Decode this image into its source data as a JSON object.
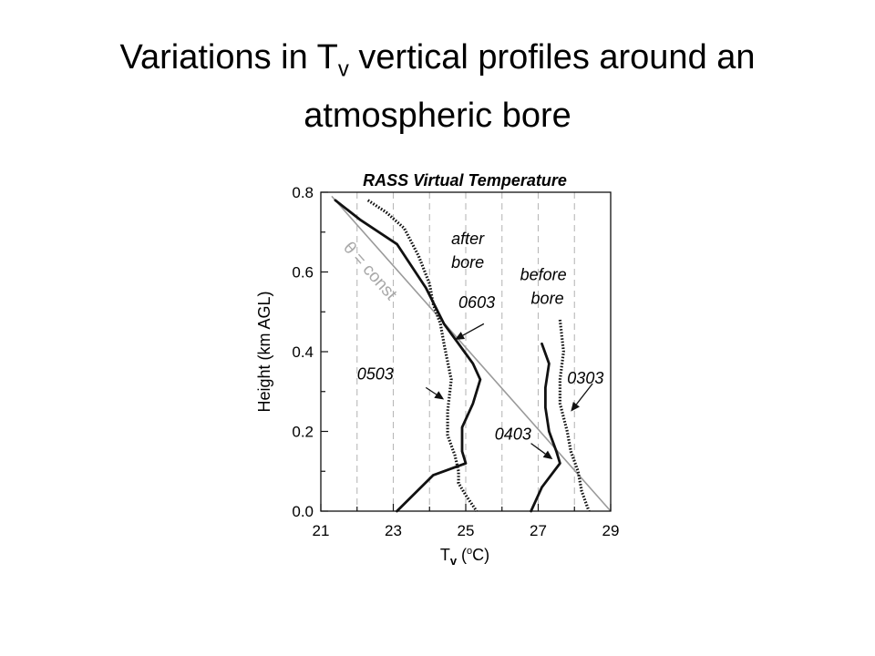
{
  "slide": {
    "title_part1": "Variations in T",
    "title_sub": "v",
    "title_part2": " vertical profiles around an",
    "title_line2": "atmospheric bore"
  },
  "chart_data": {
    "type": "line",
    "title": "RASS Virtual Temperature",
    "xlabel": "T",
    "xlabel_sub": "v",
    "xlabel_unit_open": " (",
    "xlabel_unit_sup": "o",
    "xlabel_unit_close": "C)",
    "ylabel": "Height (km AGL)",
    "xlim": [
      21,
      29
    ],
    "ylim": [
      0.0,
      0.8
    ],
    "x_ticks": [
      "21",
      "23",
      "25",
      "27",
      "29"
    ],
    "y_ticks": [
      "0.0",
      "0.2",
      "0.4",
      "0.6",
      "0.8"
    ],
    "grid": "vertical dashed",
    "reference_line": {
      "label": "θ = const",
      "points": [
        [
          21.3,
          0.79
        ],
        [
          29.0,
          0.0
        ]
      ]
    },
    "series": [
      {
        "name": "0603",
        "style": "solid",
        "points": [
          [
            21.4,
            0.78
          ],
          [
            22.1,
            0.73
          ],
          [
            23.1,
            0.67
          ],
          [
            23.9,
            0.56
          ],
          [
            24.4,
            0.47
          ],
          [
            24.8,
            0.42
          ],
          [
            25.2,
            0.37
          ],
          [
            25.4,
            0.33
          ],
          [
            25.2,
            0.27
          ],
          [
            24.9,
            0.21
          ],
          [
            24.9,
            0.15
          ],
          [
            25.0,
            0.12
          ],
          [
            24.1,
            0.09
          ],
          [
            23.1,
            0.0
          ]
        ]
      },
      {
        "name": "0503",
        "style": "dotted",
        "points": [
          [
            22.3,
            0.78
          ],
          [
            22.8,
            0.75
          ],
          [
            23.3,
            0.71
          ],
          [
            23.7,
            0.64
          ],
          [
            24.0,
            0.57
          ],
          [
            24.1,
            0.52
          ],
          [
            24.3,
            0.47
          ],
          [
            24.4,
            0.42
          ],
          [
            24.6,
            0.33
          ],
          [
            24.5,
            0.25
          ],
          [
            24.5,
            0.19
          ],
          [
            24.7,
            0.14
          ],
          [
            24.8,
            0.1
          ],
          [
            24.8,
            0.07
          ],
          [
            25.0,
            0.04
          ],
          [
            25.3,
            0.0
          ]
        ]
      },
      {
        "name": "0403",
        "style": "solid",
        "points": [
          [
            27.1,
            0.42
          ],
          [
            27.3,
            0.37
          ],
          [
            27.2,
            0.31
          ],
          [
            27.2,
            0.26
          ],
          [
            27.3,
            0.2
          ],
          [
            27.5,
            0.15
          ],
          [
            27.6,
            0.12
          ],
          [
            27.1,
            0.06
          ],
          [
            26.8,
            0.0
          ]
        ]
      },
      {
        "name": "0303",
        "style": "dotted",
        "points": [
          [
            27.6,
            0.48
          ],
          [
            27.7,
            0.4
          ],
          [
            27.6,
            0.33
          ],
          [
            27.6,
            0.27
          ],
          [
            27.8,
            0.2
          ],
          [
            27.9,
            0.15
          ],
          [
            28.1,
            0.1
          ],
          [
            28.2,
            0.05
          ],
          [
            28.4,
            0.0
          ]
        ]
      }
    ],
    "annotations": [
      {
        "text": "after",
        "x": 24.6,
        "y": 0.67
      },
      {
        "text": "bore",
        "x": 24.6,
        "y": 0.61
      },
      {
        "text": "before",
        "x": 26.5,
        "y": 0.58
      },
      {
        "text": "bore",
        "x": 26.8,
        "y": 0.52
      },
      {
        "text": "0603",
        "x": 24.8,
        "y": 0.51
      },
      {
        "text": "0503",
        "x": 22.0,
        "y": 0.33
      },
      {
        "text": "0403",
        "x": 25.8,
        "y": 0.18
      },
      {
        "text": "0303",
        "x": 27.8,
        "y": 0.32
      }
    ],
    "arrows": [
      {
        "from": [
          25.5,
          0.47
        ],
        "to": [
          24.7,
          0.43
        ]
      },
      {
        "from": [
          23.9,
          0.31
        ],
        "to": [
          24.4,
          0.28
        ]
      },
      {
        "from": [
          26.8,
          0.17
        ],
        "to": [
          27.4,
          0.13
        ]
      },
      {
        "from": [
          28.5,
          0.32
        ],
        "to": [
          27.9,
          0.25
        ]
      }
    ]
  }
}
